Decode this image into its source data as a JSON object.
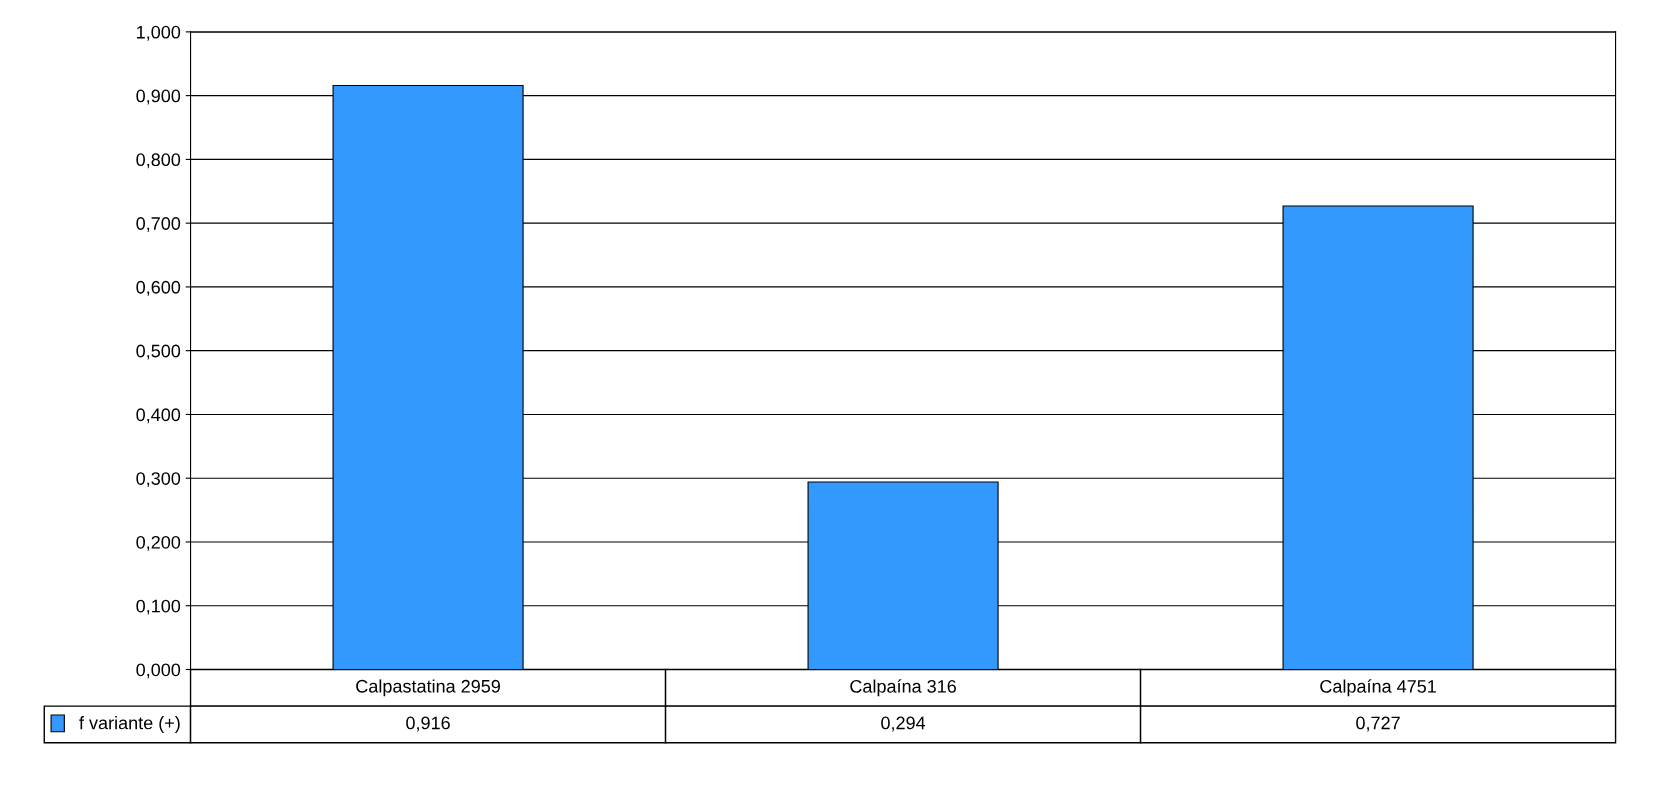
{
  "chart_data": {
    "type": "bar",
    "categories": [
      "Calpastatina 2959",
      "Calpaína 316",
      "Calpaína 4751"
    ],
    "series": [
      {
        "name": "f variante (+)",
        "color": "#3399ff",
        "values": [
          0.916,
          0.294,
          0.727
        ],
        "value_labels": [
          "0,916",
          "0,294",
          "0,727"
        ]
      }
    ],
    "ylim": [
      0,
      1
    ],
    "yticks": [
      {
        "value": 0,
        "label": "0,000"
      },
      {
        "value": 0.1,
        "label": "0,100"
      },
      {
        "value": 0.2,
        "label": "0,200"
      },
      {
        "value": 0.3,
        "label": "0,300"
      },
      {
        "value": 0.4,
        "label": "0,400"
      },
      {
        "value": 0.5,
        "label": "0,500"
      },
      {
        "value": 0.6,
        "label": "0,600"
      },
      {
        "value": 0.7,
        "label": "0,700"
      },
      {
        "value": 0.8,
        "label": "0,800"
      },
      {
        "value": 0.9,
        "label": "0,900"
      },
      {
        "value": 1,
        "label": "1,000"
      }
    ],
    "grid": "y",
    "legend": "bottom left"
  }
}
